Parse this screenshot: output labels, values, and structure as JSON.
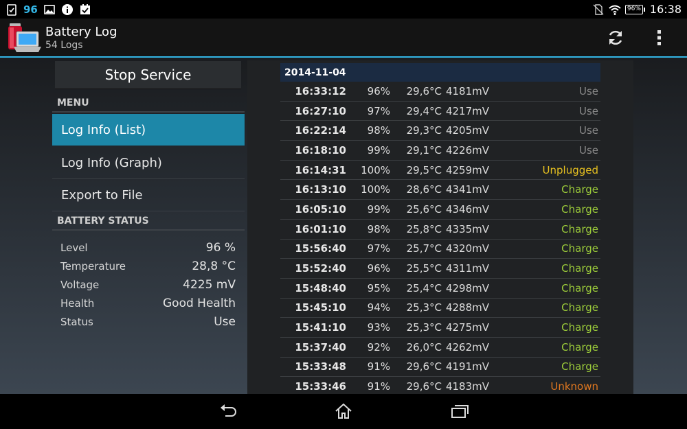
{
  "status_bar": {
    "notification_count": "96",
    "battery_percent": "96%",
    "time": "16:38"
  },
  "app": {
    "title": "Battery Log",
    "subtitle": "54 Logs"
  },
  "left_panel": {
    "stop_service_label": "Stop Service",
    "menu_header": "MENU",
    "menu_items": [
      {
        "label": "Log Info (List)",
        "active": true
      },
      {
        "label": "Log Info (Graph)",
        "active": false
      },
      {
        "label": "Export to File",
        "active": false
      }
    ],
    "battery_status_header": "BATTERY STATUS",
    "battery_status": [
      {
        "label": "Level",
        "value": "96 %"
      },
      {
        "label": "Temperature",
        "value": "28,8 °C"
      },
      {
        "label": "Voltage",
        "value": "4225 mV"
      },
      {
        "label": "Health",
        "value": "Good Health"
      },
      {
        "label": "Status",
        "value": "Use"
      }
    ]
  },
  "log": {
    "date": "2014-11-04",
    "entries": [
      {
        "time": "16:33:12",
        "level": "96%",
        "temp": "29,6°C",
        "voltage": "4181mV",
        "status": "Use"
      },
      {
        "time": "16:27:10",
        "level": "97%",
        "temp": "29,4°C",
        "voltage": "4217mV",
        "status": "Use"
      },
      {
        "time": "16:22:14",
        "level": "98%",
        "temp": "29,3°C",
        "voltage": "4205mV",
        "status": "Use"
      },
      {
        "time": "16:18:10",
        "level": "99%",
        "temp": "29,1°C",
        "voltage": "4226mV",
        "status": "Use"
      },
      {
        "time": "16:14:31",
        "level": "100%",
        "temp": "29,5°C",
        "voltage": "4259mV",
        "status": "Unplugged"
      },
      {
        "time": "16:13:10",
        "level": "100%",
        "temp": "28,6°C",
        "voltage": "4341mV",
        "status": "Charge"
      },
      {
        "time": "16:05:10",
        "level": "99%",
        "temp": "25,6°C",
        "voltage": "4346mV",
        "status": "Charge"
      },
      {
        "time": "16:01:10",
        "level": "98%",
        "temp": "25,8°C",
        "voltage": "4335mV",
        "status": "Charge"
      },
      {
        "time": "15:56:40",
        "level": "97%",
        "temp": "25,7°C",
        "voltage": "4320mV",
        "status": "Charge"
      },
      {
        "time": "15:52:40",
        "level": "96%",
        "temp": "25,5°C",
        "voltage": "4311mV",
        "status": "Charge"
      },
      {
        "time": "15:48:40",
        "level": "95%",
        "temp": "25,4°C",
        "voltage": "4298mV",
        "status": "Charge"
      },
      {
        "time": "15:45:10",
        "level": "94%",
        "temp": "25,3°C",
        "voltage": "4288mV",
        "status": "Charge"
      },
      {
        "time": "15:41:10",
        "level": "93%",
        "temp": "25,3°C",
        "voltage": "4275mV",
        "status": "Charge"
      },
      {
        "time": "15:37:40",
        "level": "92%",
        "temp": "26,0°C",
        "voltage": "4262mV",
        "status": "Charge"
      },
      {
        "time": "15:33:48",
        "level": "91%",
        "temp": "29,6°C",
        "voltage": "4191mV",
        "status": "Charge"
      },
      {
        "time": "15:33:46",
        "level": "91%",
        "temp": "29,6°C",
        "voltage": "4183mV",
        "status": "Unknown"
      }
    ]
  },
  "colors": {
    "accent": "#33b5e5",
    "active_menu": "#1d87a8",
    "status_use": "#8a8a8a",
    "status_unplugged": "#e6c020",
    "status_charge": "#9ccc3a",
    "status_unknown": "#e07820"
  },
  "icons": {
    "status_left": [
      "clipboard-check-icon",
      "image-icon",
      "info-icon",
      "calendar-check-icon"
    ],
    "status_right": [
      "no-sim-icon",
      "wifi-icon",
      "battery-icon"
    ],
    "action": [
      "refresh-icon",
      "overflow-menu-icon"
    ],
    "nav": [
      "back-icon",
      "home-icon",
      "recents-icon"
    ]
  }
}
